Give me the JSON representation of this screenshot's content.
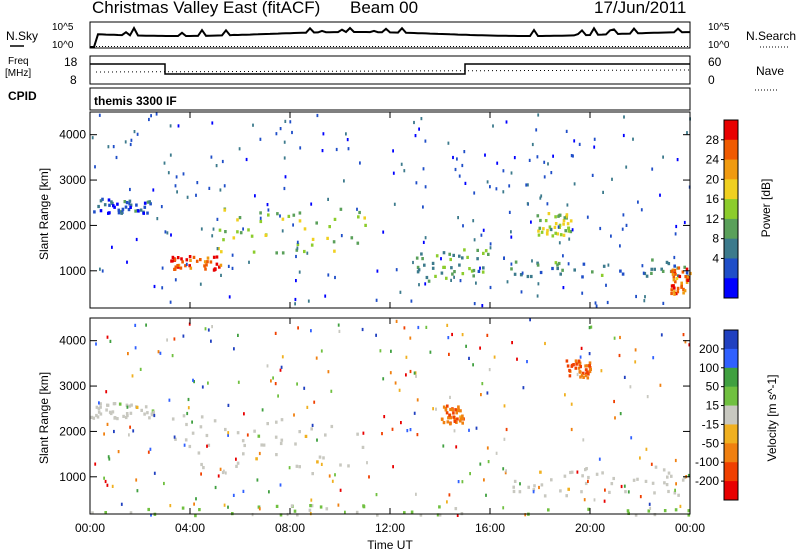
{
  "header": {
    "station": "Christmas Valley East (fitACF)",
    "beam": "Beam 00",
    "date": "17/Jun/2011"
  },
  "top_panels": {
    "nsky_label": "N.Sky",
    "nsky_ticks": [
      "10^5",
      "10^0"
    ],
    "nsearch_label": "N.Search",
    "nsearch_ticks": [
      "10^5",
      "10^0"
    ],
    "freq_label": "Freq",
    "freq_unit": "[MHz]",
    "freq_ticks": [
      "18",
      "8"
    ],
    "nave_label": "Nave",
    "nave_ticks": [
      "60",
      "0"
    ],
    "cpid_label": "CPID",
    "cpid_text": "themis 3300 IF"
  },
  "colors": {
    "power_scale": [
      "#0000ff",
      "#1f4ec8",
      "#3c7a8c",
      "#5aa05a",
      "#8ccc2c",
      "#f0d020",
      "#f09a10",
      "#f05a00",
      "#e80000"
    ],
    "velocity_scale": [
      "#2040c0",
      "#3060ff",
      "#40a040",
      "#70c040",
      "#c8c8c0",
      "#f0b020",
      "#f08010",
      "#f04000",
      "#e80000"
    ]
  },
  "chart_data": [
    {
      "type": "heatmap",
      "name": "power",
      "xlabel": "",
      "ylabel": "Slant Range [km]",
      "x_ticks": [
        "00:00",
        "04:00",
        "08:00",
        "12:00",
        "16:00",
        "20:00",
        "00:00"
      ],
      "y_ticks": [
        "1000",
        "2000",
        "3000",
        "4000"
      ],
      "ylim": [
        180,
        4500
      ],
      "xlim": [
        0,
        24
      ],
      "colorbar": {
        "label": "Power [dB]",
        "ticks": [
          "28",
          "24",
          "20",
          "16",
          "12",
          "8",
          "4"
        ],
        "range": [
          0,
          32
        ]
      },
      "features": [
        {
          "desc": "echo band",
          "t": [
            0,
            2.5
          ],
          "range": [
            2300,
            2650
          ],
          "dB": 6
        },
        {
          "desc": "strong echo",
          "t": [
            3.2,
            5.2
          ],
          "range": [
            1050,
            1350
          ],
          "dB": 28
        },
        {
          "desc": "echo band",
          "t": [
            5,
            11
          ],
          "range": [
            1400,
            2400
          ],
          "dB": 16
        },
        {
          "desc": "echo band",
          "t": [
            13,
            16
          ],
          "range": [
            800,
            1500
          ],
          "dB": 12
        },
        {
          "desc": "echo patch",
          "t": [
            17.8,
            19.2
          ],
          "range": [
            1800,
            2300
          ],
          "dB": 16
        },
        {
          "desc": "echo band",
          "t": [
            16.5,
            24
          ],
          "range": [
            900,
            1300
          ],
          "dB": 10
        },
        {
          "desc": "strong echo",
          "t": [
            23.2,
            24
          ],
          "range": [
            500,
            1100
          ],
          "dB": 26
        }
      ]
    },
    {
      "type": "heatmap",
      "name": "velocity",
      "xlabel": "Time UT",
      "ylabel": "Slant Range [km]",
      "x_ticks": [
        "00:00",
        "04:00",
        "08:00",
        "12:00",
        "16:00",
        "20:00",
        "00:00"
      ],
      "y_ticks": [
        "1000",
        "2000",
        "3000",
        "4000"
      ],
      "ylim": [
        180,
        4500
      ],
      "xlim": [
        0,
        24
      ],
      "colorbar": {
        "label": "Velocity [m s^-1]",
        "ticks": [
          "200",
          "100",
          "50",
          "15",
          "-15",
          "-50",
          "-100",
          "-200"
        ],
        "range": [
          -250,
          250
        ]
      },
      "features": [
        {
          "desc": "ground scatter",
          "t": [
            0,
            2.5
          ],
          "range": [
            2300,
            2650
          ],
          "vel": 0
        },
        {
          "desc": "ground scatter",
          "t": [
            3.2,
            11
          ],
          "range": [
            1100,
            2400
          ],
          "vel": 0
        },
        {
          "desc": "ground scatter",
          "t": [
            16.5,
            24
          ],
          "range": [
            600,
            1300
          ],
          "vel": 0
        },
        {
          "desc": "negative velocity echo",
          "t": [
            14,
            15
          ],
          "range": [
            2200,
            2600
          ],
          "vel": -120
        },
        {
          "desc": "negative velocity echo",
          "t": [
            19,
            20
          ],
          "range": [
            3200,
            3600
          ],
          "vel": -150
        },
        {
          "desc": "near-range echoes",
          "t": [
            0,
            24
          ],
          "range": [
            180,
            400
          ],
          "vel": 40
        }
      ]
    }
  ]
}
